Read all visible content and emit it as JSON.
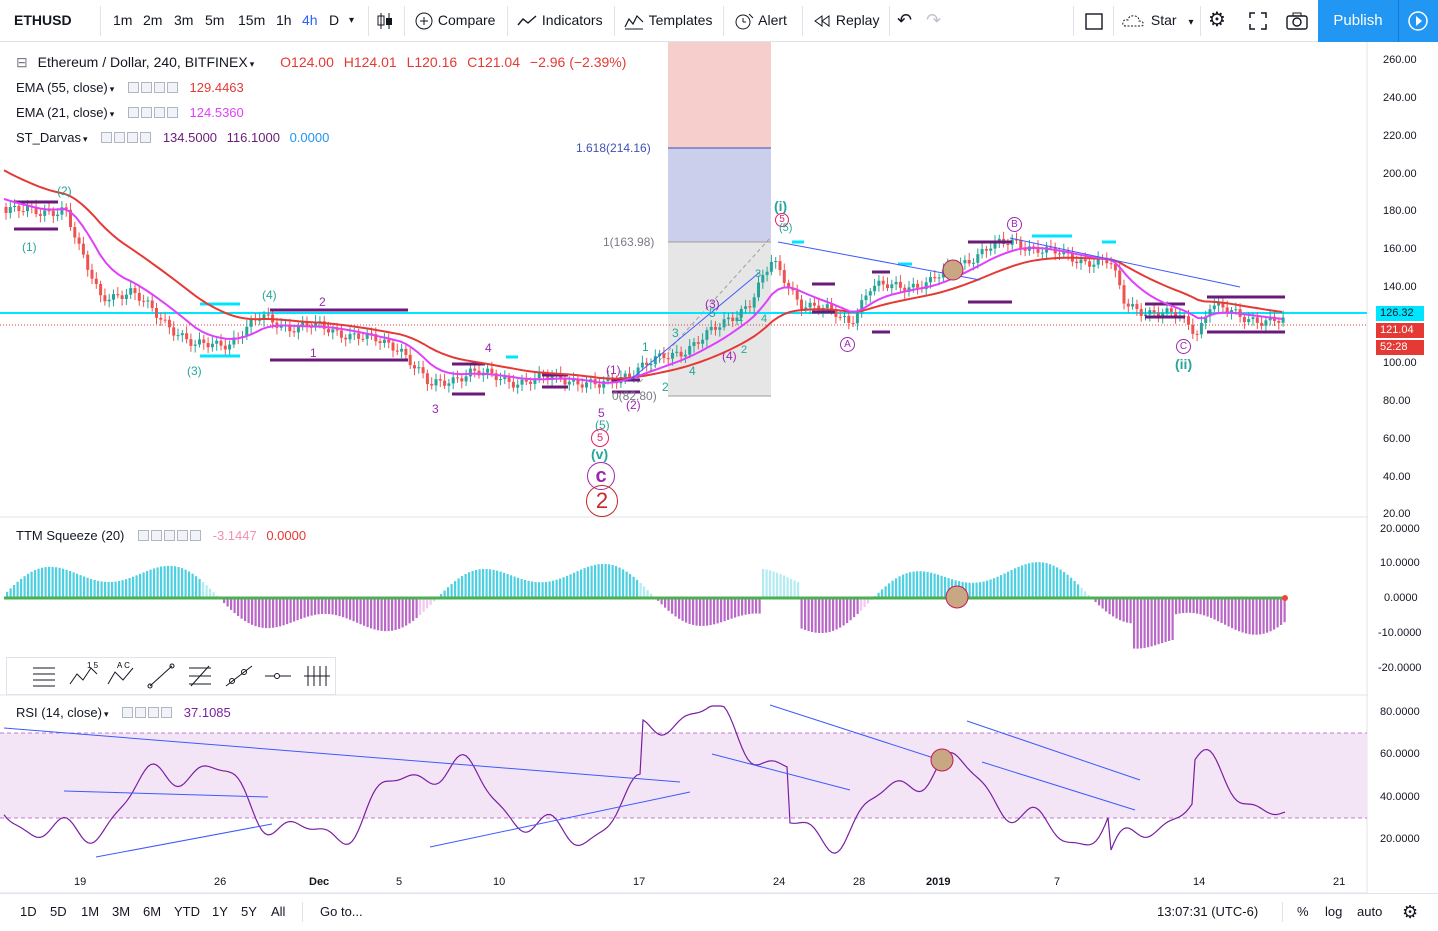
{
  "toolbar": {
    "symbol": "ETHUSD",
    "intervals": [
      "1m",
      "2m",
      "3m",
      "5m",
      "15m",
      "1h",
      "4h",
      "D"
    ],
    "active_interval": "4h",
    "compare_label": "Compare",
    "indicators_label": "Indicators",
    "templates_label": "Templates",
    "alert_label": "Alert",
    "replay_label": "Replay",
    "star_label": "Star",
    "publish_label": "Publish"
  },
  "legend": {
    "main": {
      "title": "Ethereum / Dollar, 240, BITFINEX",
      "open": "O124.00",
      "high": "H124.01",
      "low": "L120.16",
      "close": "C121.04",
      "change": "−2.96 (−2.39%)"
    },
    "ema55": {
      "label": "EMA (55, close)",
      "value": "129.4463"
    },
    "ema21": {
      "label": "EMA (21, close)",
      "value": "124.5360"
    },
    "darvas": {
      "label": "ST_Darvas",
      "v1": "134.5000",
      "v2": "116.1000",
      "v3": "0.0000"
    },
    "ttm": {
      "label": "TTM Squeeze (20)",
      "v1": "-3.1447",
      "v2": "0.0000"
    },
    "rsi": {
      "label": "RSI (14, close)",
      "value": "37.1085"
    }
  },
  "price_axis": [
    "260.00",
    "240.00",
    "220.00",
    "200.00",
    "180.00",
    "160.00",
    "140.00",
    "120.00",
    "100.00",
    "80.00",
    "60.00",
    "40.00",
    "20.00"
  ],
  "price_tags": {
    "cyan": "126.32",
    "last": "121.04",
    "countdown": "52:28"
  },
  "ttm_axis": [
    "20.0000",
    "10.0000",
    "0.0000",
    "-10.0000",
    "-20.0000"
  ],
  "rsi_axis": [
    "80.0000",
    "60.0000",
    "40.0000",
    "20.0000"
  ],
  "time_axis": [
    "19",
    "26",
    "Dec",
    "5",
    "10",
    "17",
    "24",
    "28",
    "2019",
    "7",
    "14",
    "21"
  ],
  "fib": {
    "top": "1.618(214.16)",
    "mid": "1(163.98)",
    "bottom": "0(82.80)"
  },
  "wave_labels": {
    "w1": "(1)",
    "w2": "(2)",
    "w3": "(3)",
    "w4": "(4)",
    "n2": "2",
    "n1": "1",
    "n4": "4",
    "n3": "3",
    "n5": "5",
    "p5": "(5)",
    "c5": "5",
    "v": "(v)",
    "bigc": "c",
    "big2": "2",
    "i": "(i)",
    "i5": "5",
    "ii": "(ii)",
    "ca": "A",
    "cb": "B",
    "cc": "C",
    "g1": "1",
    "g2": "2",
    "g3": "3",
    "g4": "4",
    "g5": "5",
    "m1": "(1)",
    "m2": "(2)",
    "m3": "(3)",
    "m4": "(4)",
    "m5": "(5)",
    "x1": "1",
    "x2": "2",
    "x3": "3",
    "x4": "4",
    "x5": "5"
  },
  "bottom": {
    "ranges": [
      "1D",
      "5D",
      "1M",
      "3M",
      "6M",
      "YTD",
      "1Y",
      "5Y",
      "All"
    ],
    "goto": "Go to...",
    "clock": "13:07:31 (UTC-6)",
    "pct": "%",
    "log": "log",
    "auto": "auto"
  },
  "colors": {
    "ema55": "#e53935",
    "ema21": "#e040fb",
    "cyan": "#00e5ff",
    "darvas": "#6a1b7a",
    "rsi": "#7b1fa2",
    "accent": "#2196f3"
  }
}
